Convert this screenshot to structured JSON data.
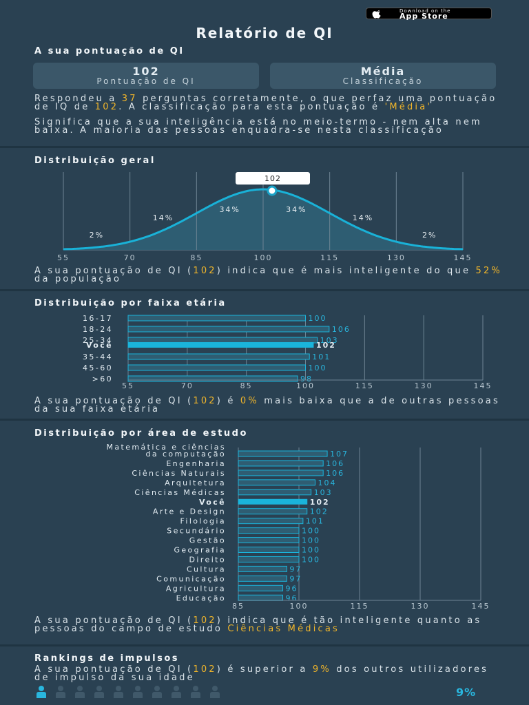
{
  "appstore": {
    "small": "Download on the",
    "big": "App Store"
  },
  "title": "Relatório de QI",
  "score_section": {
    "heading": "A sua pontuação de QI",
    "card1": {
      "value": "102",
      "label": "Pontuação de QI"
    },
    "card2": {
      "value": "Média",
      "label": "Classificação"
    },
    "p1": [
      {
        "t": "Respondeu a "
      },
      {
        "t": "37",
        "h": true
      },
      {
        "t": " perguntas corretamente, o que perfaz uma pontuação de IQ de "
      },
      {
        "t": "102",
        "h": true
      },
      {
        "t": ". A classificação para esta pontuação é "
      },
      {
        "t": "'Média'",
        "h": true
      }
    ],
    "p2": [
      {
        "t": "Significa que a sua inteligência está no meio-termo - nem alta nem baixa. A maioria das pessoas enquadra-se nesta classificação"
      }
    ]
  },
  "distribution": {
    "heading": "Distribuição geral",
    "marker": "102",
    "percents": [
      "2%",
      "14%",
      "34%",
      "34%",
      "14%",
      "2%"
    ],
    "ticks": [
      "55",
      "70",
      "85",
      "100",
      "115",
      "130",
      "145"
    ],
    "note": [
      {
        "t": "A sua pontuação de QI ("
      },
      {
        "t": "102",
        "h": true
      },
      {
        "t": ") indica que é mais inteligente do que "
      },
      {
        "t": "52%",
        "h": true
      },
      {
        "t": " da população"
      }
    ]
  },
  "age": {
    "heading": "Distribuição por faixa etária",
    "note": [
      {
        "t": "A sua pontuação de QI ("
      },
      {
        "t": "102",
        "h": true
      },
      {
        "t": ") é "
      },
      {
        "t": "0%",
        "h": true
      },
      {
        "t": " mais baixa que a de outras pessoas da sua faixa etária"
      }
    ]
  },
  "study": {
    "heading": "Distribuição por área de estudo",
    "note": [
      {
        "t": "A sua pontuação de QI ("
      },
      {
        "t": "102",
        "h": true
      },
      {
        "t": ") indica que é tão inteligente quanto as pessoas do campo de estudo "
      },
      {
        "t": "Ciências Médicas",
        "h": true
      }
    ]
  },
  "rankings": {
    "heading": "Rankings de impulsos",
    "note": [
      {
        "t": "A sua pontuação de QI ("
      },
      {
        "t": "102",
        "h": true
      },
      {
        "t": ") é superior a "
      },
      {
        "t": "9%",
        "h": true
      },
      {
        "t": " dos outros utilizadores de impulso da sua idade"
      }
    ],
    "percent": "9%",
    "filled_persons": 1,
    "total_persons": 10
  },
  "colors": {
    "accent": "#29b6de",
    "highlight": "#f2b62a",
    "bg": "#2a4152"
  },
  "chart_data": [
    {
      "type": "area",
      "title": "Distribuição geral",
      "x_ticks": [
        55,
        70,
        85,
        100,
        115,
        130,
        145
      ],
      "xlim": [
        55,
        145
      ],
      "mean": 100,
      "sd": 15,
      "marker": 102,
      "segments": [
        "2%",
        "14%",
        "34%",
        "34%",
        "14%",
        "2%"
      ]
    },
    {
      "type": "bar",
      "title": "Distribuição por faixa etária",
      "orientation": "horizontal",
      "categories": [
        "16-17",
        "18-24",
        "25-34",
        "Você",
        "35-44",
        "45-60",
        ">60"
      ],
      "values": [
        100,
        106,
        103,
        102,
        101,
        100,
        98
      ],
      "highlight": "Você",
      "x_ticks": [
        55,
        70,
        85,
        100,
        115,
        130,
        145
      ],
      "xlim": [
        55,
        145
      ]
    },
    {
      "type": "bar",
      "title": "Distribuição por área de estudo",
      "orientation": "horizontal",
      "categories": [
        "Matemática e ciências da computação",
        "Engenharia",
        "Ciências Naturais",
        "Arquitetura",
        "Ciências Médicas",
        "Você",
        "Arte e Design",
        "Filologia",
        "Secundário",
        "Gestão",
        "Geografia",
        "Direito",
        "Cultura",
        "Comunicação",
        "Agricultura",
        "Educação"
      ],
      "values": [
        107,
        106,
        106,
        104,
        103,
        102,
        102,
        101,
        100,
        100,
        100,
        100,
        97,
        97,
        96,
        96
      ],
      "highlight": "Você",
      "x_ticks": [
        85,
        100,
        115,
        130,
        145
      ],
      "xlim": [
        85,
        145
      ]
    }
  ]
}
